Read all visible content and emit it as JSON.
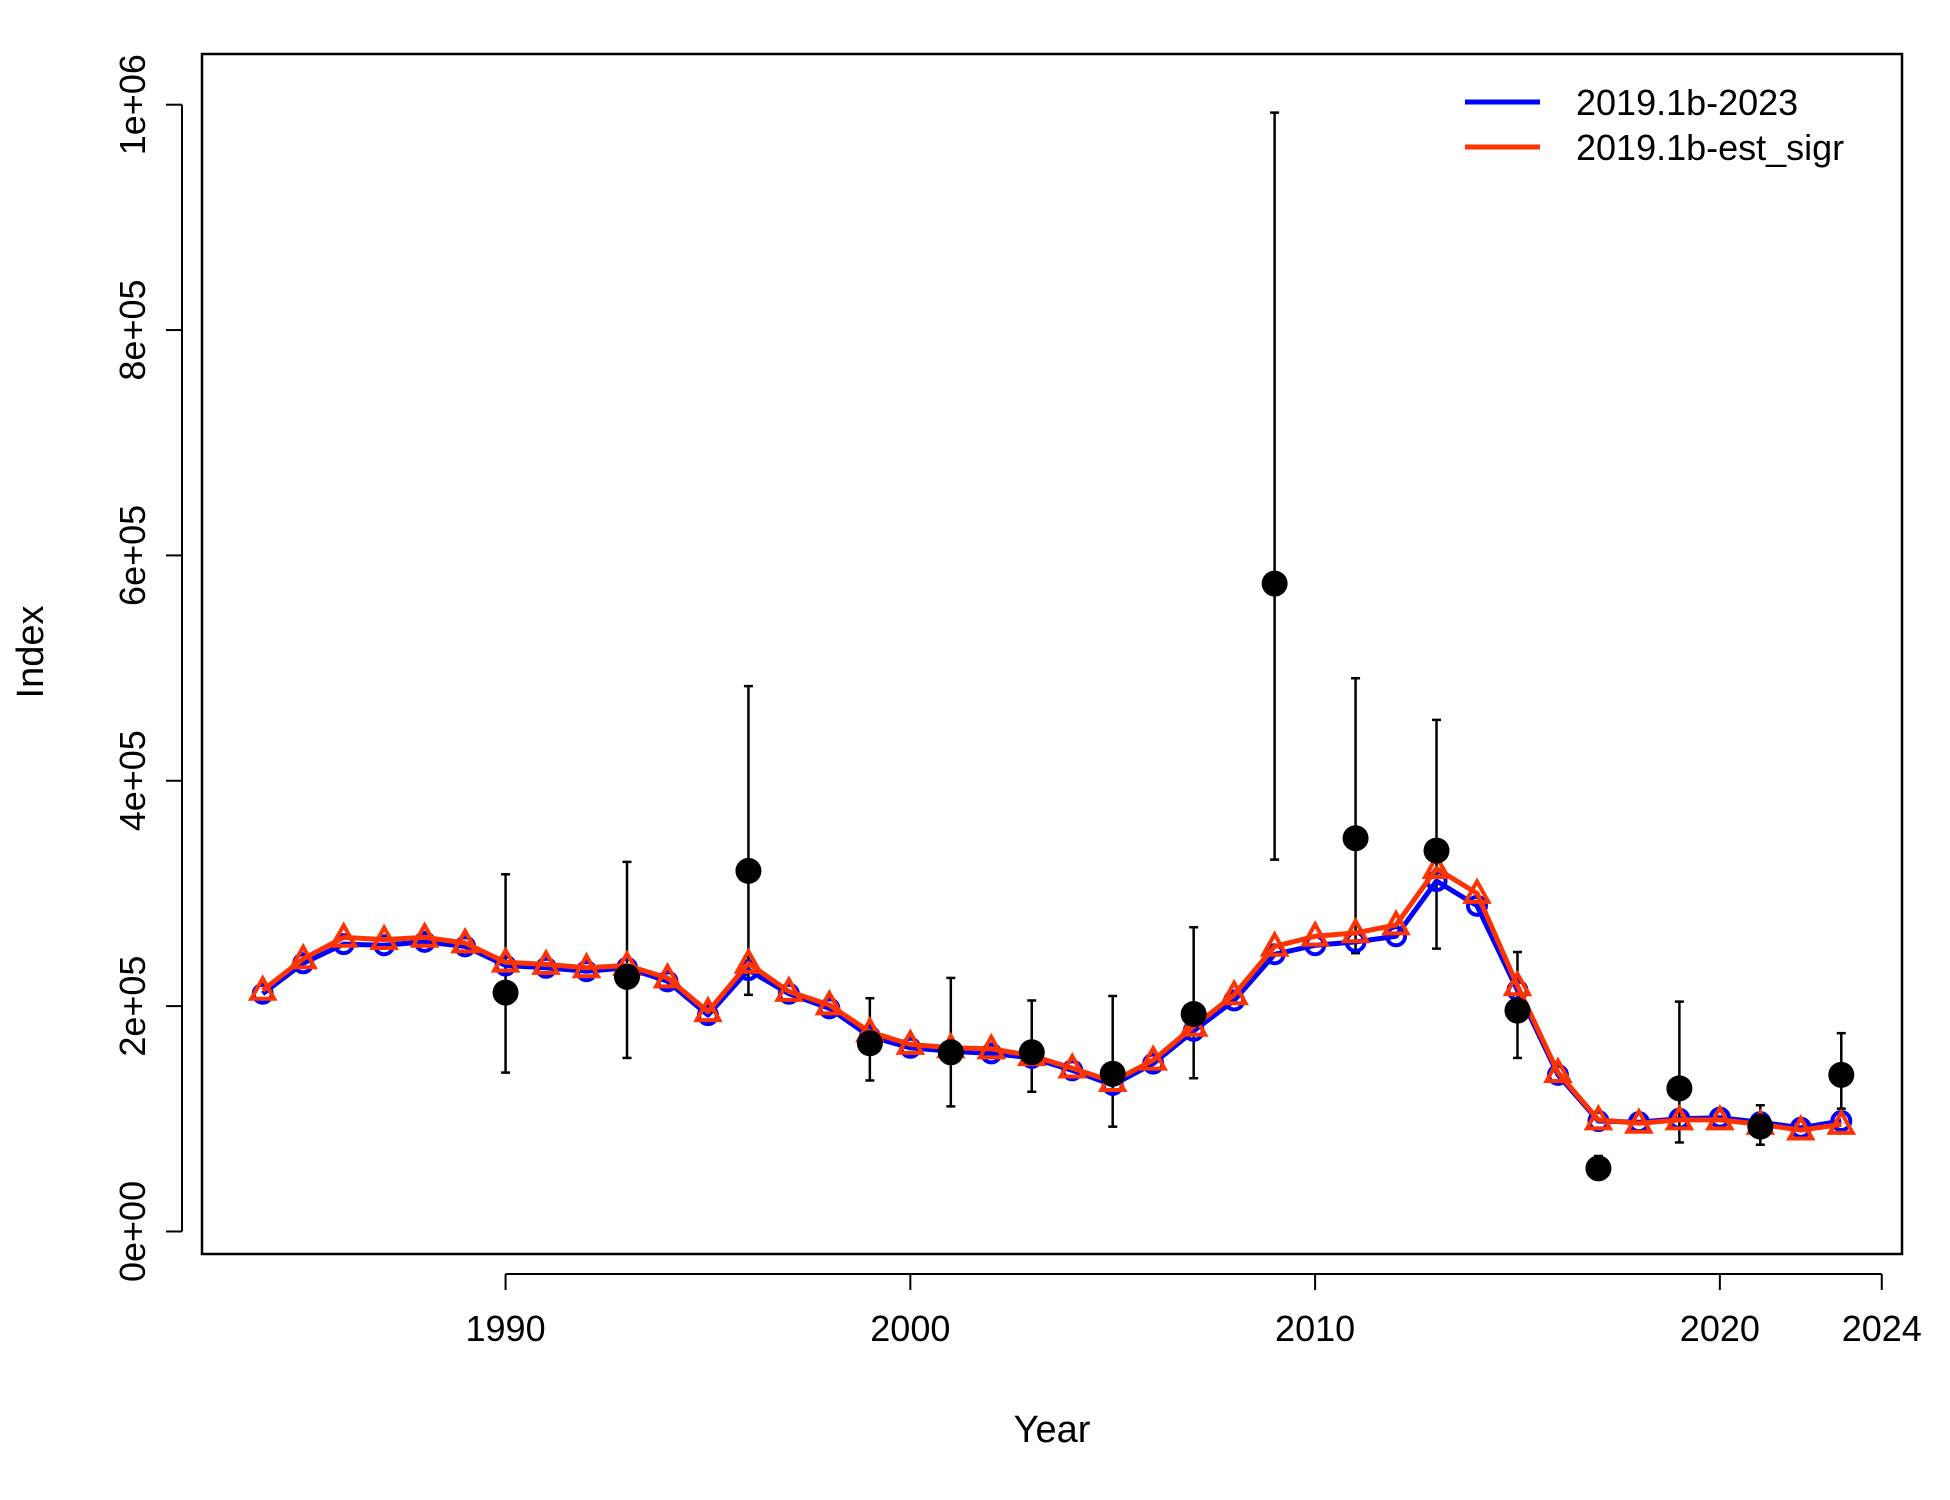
{
  "chart_data": {
    "type": "line",
    "xlabel": "Year",
    "ylabel": "Index",
    "xlim": [
      1982.5,
      2024.5
    ],
    "ylim": [
      -20000,
      1045000
    ],
    "x_ticks": [
      1990,
      2000,
      2010,
      2020,
      2024
    ],
    "x_tick_labels": [
      "1990",
      "2000",
      "2010",
      "2020",
      "2024"
    ],
    "y_ticks": [
      0,
      200000,
      400000,
      600000,
      800000,
      1000000
    ],
    "y_tick_labels": [
      "0e+00",
      "2e+05",
      "4e+05",
      "6e+05",
      "8e+05",
      "1e+06"
    ],
    "grid": false,
    "legend_position": "top-right",
    "series": [
      {
        "name": "2019.1b-2023",
        "color": "#0000FF",
        "marker": "circle",
        "x": [
          1984,
          1985,
          1986,
          1987,
          1988,
          1989,
          1990,
          1991,
          1992,
          1993,
          1994,
          1995,
          1996,
          1997,
          1998,
          1999,
          2000,
          2001,
          2002,
          2003,
          2004,
          2005,
          2006,
          2007,
          2008,
          2009,
          2010,
          2011,
          2012,
          2013,
          2014,
          2015,
          2016,
          2017,
          2018,
          2019,
          2020,
          2021,
          2022,
          2023
        ],
        "values": [
          211000,
          238000,
          255000,
          254000,
          257000,
          253000,
          236000,
          234000,
          231000,
          234000,
          222000,
          192000,
          232000,
          211000,
          198000,
          173000,
          163000,
          160000,
          158000,
          154000,
          143000,
          130000,
          149000,
          178000,
          205000,
          246000,
          254000,
          257000,
          262000,
          311000,
          289000,
          214000,
          139000,
          98000,
          97000,
          100000,
          101000,
          97000,
          92000,
          98000
        ]
      },
      {
        "name": "2019.1b-est_sigr",
        "color": "#FF3300",
        "marker": "triangle",
        "x": [
          1984,
          1985,
          1986,
          1987,
          1988,
          1989,
          1990,
          1991,
          1992,
          1993,
          1994,
          1995,
          1996,
          1997,
          1998,
          1999,
          2000,
          2001,
          2002,
          2003,
          2004,
          2005,
          2006,
          2007,
          2008,
          2009,
          2010,
          2011,
          2012,
          2013,
          2014,
          2015,
          2016,
          2017,
          2018,
          2019,
          2020,
          2021,
          2022,
          2023
        ],
        "values": [
          214000,
          242000,
          261000,
          259000,
          261000,
          256000,
          239000,
          237000,
          234000,
          236000,
          225000,
          195000,
          238000,
          213000,
          201000,
          177000,
          166000,
          163000,
          162000,
          156000,
          145000,
          133000,
          152000,
          182000,
          210000,
          253000,
          262000,
          265000,
          272000,
          322000,
          300000,
          218000,
          141000,
          99000,
          96000,
          99000,
          99000,
          95000,
          90000,
          95000
        ]
      }
    ],
    "observations": {
      "marker": "filled-circle",
      "color": "#000000",
      "x": [
        1990,
        1993,
        1996,
        1999,
        2001,
        2003,
        2005,
        2007,
        2009,
        2011,
        2013,
        2015,
        2017,
        2019,
        2021,
        2023
      ],
      "values": [
        212000,
        226000,
        320000,
        167000,
        159000,
        159000,
        140000,
        193000,
        575000,
        349000,
        338000,
        196000,
        56000,
        127000,
        93000,
        139000
      ],
      "lower": [
        141000,
        154000,
        210000,
        134000,
        111000,
        124000,
        93000,
        136000,
        330000,
        247000,
        251000,
        154000,
        47000,
        79000,
        77000,
        109000
      ],
      "upper": [
        317000,
        328000,
        484000,
        207000,
        225000,
        205000,
        209000,
        270000,
        993000,
        491000,
        454000,
        248000,
        67000,
        204000,
        112000,
        176000
      ]
    }
  }
}
